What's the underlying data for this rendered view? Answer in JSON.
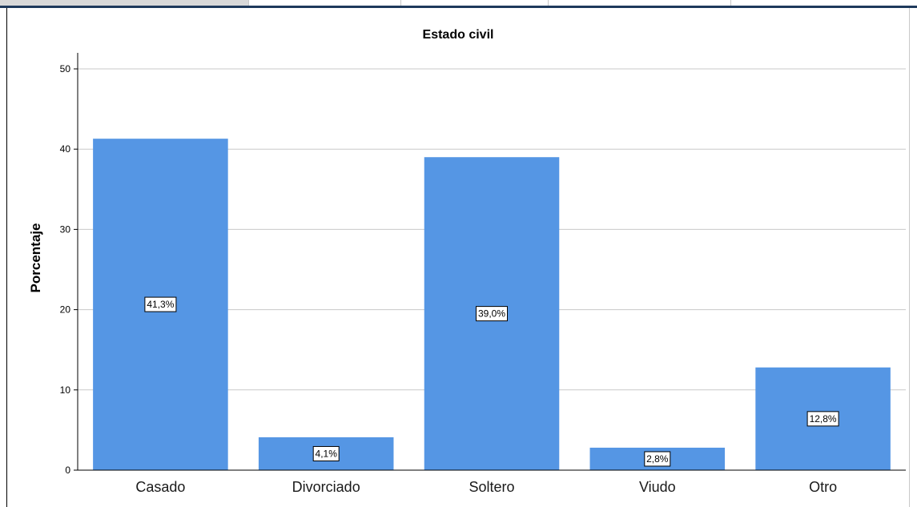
{
  "chart_data": {
    "type": "bar",
    "title": "Estado civil",
    "xlabel": "",
    "ylabel": "Porcentaje",
    "ylim": [
      0,
      52
    ],
    "yticks": [
      0,
      10,
      20,
      30,
      40,
      50
    ],
    "grid": true,
    "categories": [
      "Casado",
      "Divorciado",
      "Soltero",
      "Viudo",
      "Otro"
    ],
    "values": [
      41.3,
      4.1,
      39.0,
      2.8,
      12.8
    ],
    "data_labels": [
      "41,3%",
      "4,1%",
      "39,0%",
      "2,8%",
      "12,8%"
    ],
    "bar_color": "#5596e4",
    "grid_color": "#c8c8c8"
  }
}
